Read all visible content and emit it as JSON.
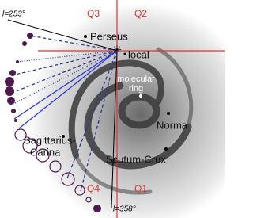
{
  "quadrants": {
    "q3": "Q3",
    "q2": "Q2",
    "q4": "Q4",
    "q1": "Q1"
  },
  "longitudes": {
    "upper": "l=253°",
    "lower": "l=358°"
  },
  "arms": {
    "perseus": "Perseus",
    "local": "local",
    "sagittarius_carina": [
      "Sagittarius-",
      "Carina"
    ],
    "norma": "Norma",
    "scutum_crux": "Scutum-Crux"
  },
  "molecular_ring": [
    "molecular",
    "ring"
  ]
}
